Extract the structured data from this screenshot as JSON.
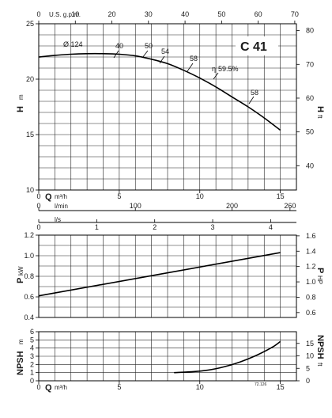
{
  "chart_data": {
    "model": "C 41",
    "top_axis": {
      "unit": "U.S. g.p.m.",
      "ticks": [
        "0",
        "10",
        "20",
        "30",
        "40",
        "50",
        "60",
        "70"
      ]
    },
    "flow_axes": [
      {
        "unit": "m³/h",
        "ticks": [
          "0",
          "5",
          "10",
          "15"
        ]
      },
      {
        "unit": "l/min",
        "ticks": [
          "0",
          "100",
          "200",
          "260"
        ]
      },
      {
        "unit": "l/s",
        "ticks": [
          "0",
          "1",
          "2",
          "3",
          "4"
        ]
      }
    ],
    "bottom_axis": {
      "unit": "m³/h",
      "ticks": [
        "0",
        "5",
        "10",
        "15"
      ]
    },
    "panels": [
      {
        "id": "head",
        "type": "line",
        "ylabel": "H",
        "ylabel_unit": "m",
        "yticks": [
          "10",
          "15",
          "20",
          "25"
        ],
        "ylim": [
          10,
          25
        ],
        "y2label": "H",
        "y2label_unit": "ft",
        "y2ticks": [
          "40",
          "50",
          "60",
          "70",
          "80"
        ],
        "xlim": [
          0,
          16
        ],
        "series": [
          {
            "name": "Ø 124",
            "x": [
              0,
              1,
              2,
              3,
              4,
              5,
              6,
              7,
              8,
              9,
              10,
              11,
              12,
              13,
              14,
              15
            ],
            "y": [
              22.0,
              22.15,
              22.25,
              22.3,
              22.3,
              22.25,
              22.1,
              21.8,
              21.4,
              20.8,
              20.1,
              19.3,
              18.4,
              17.5,
              16.5,
              15.4
            ]
          }
        ],
        "annotations": [
          "40",
          "50",
          "54",
          "58",
          "η",
          "59.5%",
          "58"
        ]
      },
      {
        "id": "power",
        "type": "line",
        "ylabel": "P",
        "ylabel_unit": "kW",
        "yticks": [
          "0.4",
          "0.6",
          "0.8",
          "1.0",
          "1.2"
        ],
        "ylim": [
          0.4,
          1.2
        ],
        "y2label": "P",
        "y2label_unit": "HP",
        "y2ticks": [
          "0.6",
          "0.8",
          "1.0",
          "1.2",
          "1.4",
          "1.6"
        ],
        "xlim": [
          0,
          16
        ],
        "series": [
          {
            "x": [
              0,
              15
            ],
            "y": [
              0.61,
              1.03
            ]
          }
        ]
      },
      {
        "id": "npsh",
        "type": "line",
        "ylabel": "NPSH",
        "ylabel_unit": "m",
        "yticks": [
          "0",
          "1",
          "2",
          "3",
          "4",
          "5",
          "6"
        ],
        "ylim": [
          0,
          6
        ],
        "y2label": "NPSH",
        "y2label_unit": "ft",
        "y2ticks": [
          "0",
          "5",
          "10",
          "15"
        ],
        "xlim": [
          0,
          16
        ],
        "series": [
          {
            "x": [
              8.4,
              9.5,
              10.5,
              11.5,
              12.5,
              13.5,
              14.5,
              15
            ],
            "y": [
              1.0,
              1.1,
              1.3,
              1.7,
              2.3,
              3.1,
              4.1,
              4.8
            ]
          }
        ]
      }
    ],
    "footnote": "72.126"
  }
}
